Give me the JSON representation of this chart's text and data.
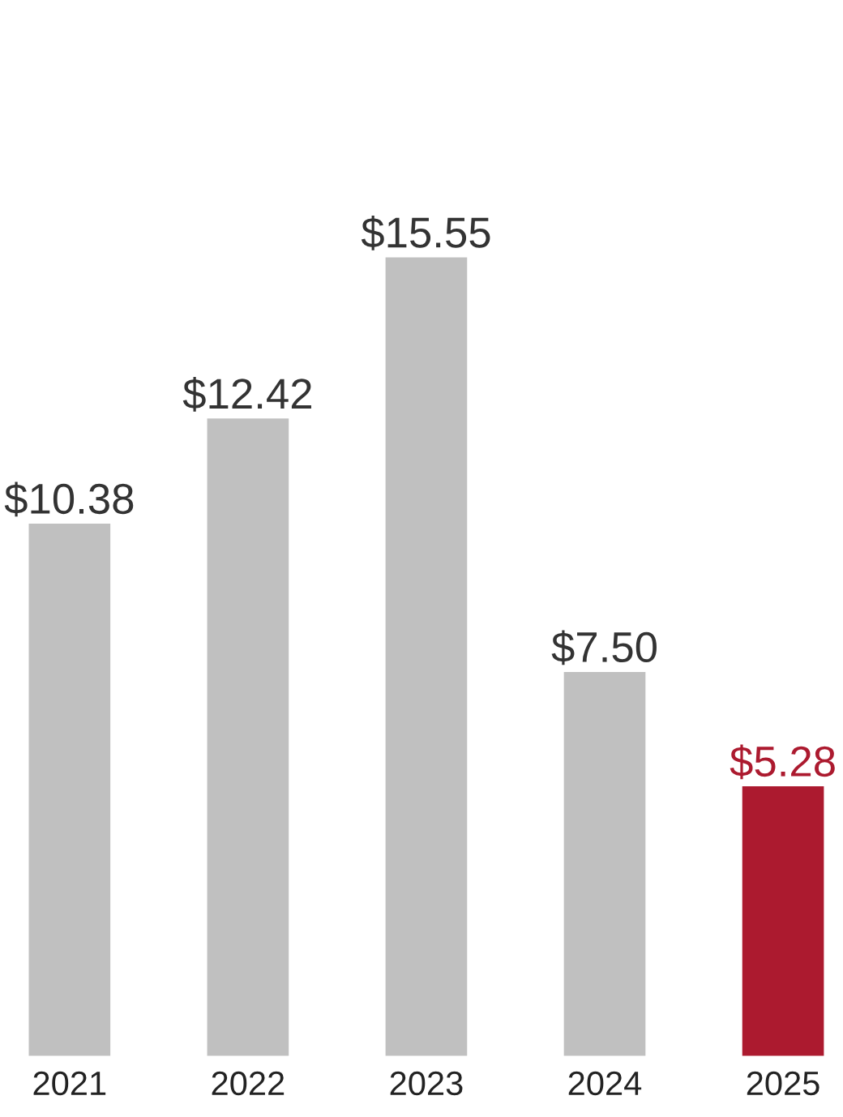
{
  "chart_data": {
    "type": "bar",
    "categories": [
      "2021",
      "2022",
      "2023",
      "2024",
      "2025"
    ],
    "values": [
      10.38,
      12.42,
      15.55,
      7.5,
      5.28
    ],
    "value_labels": [
      "$10.38",
      "$12.42",
      "$15.55",
      "$7.50",
      "$5.28"
    ],
    "colors": [
      "#c0c0c0",
      "#c0c0c0",
      "#c0c0c0",
      "#c0c0c0",
      "#ac1a2f"
    ],
    "grid": false,
    "legend": false
  }
}
